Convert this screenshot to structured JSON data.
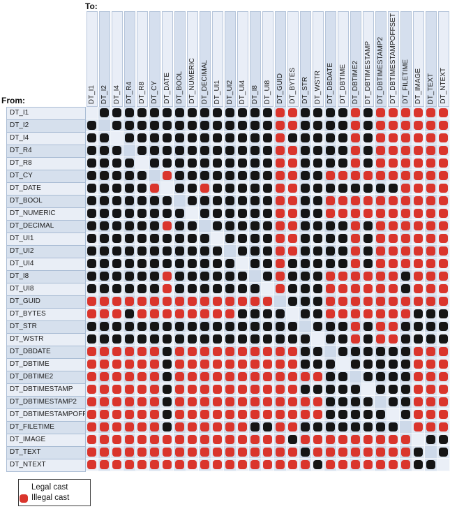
{
  "header": {
    "to_label": "To:",
    "from_label": "From:"
  },
  "legend": {
    "legal_label": "Legal cast",
    "illegal_label": "Illegal cast"
  },
  "colors": {
    "legal_dot": "#151515",
    "illegal_dot": "#da352c"
  },
  "chart_data": {
    "type": "heatmap",
    "x_axis_label": "To:",
    "y_axis_label": "From:",
    "legend_entries": [
      {
        "label": "Legal cast",
        "color": "#151515"
      },
      {
        "label": "Illegal cast",
        "color": "#da352c"
      }
    ],
    "cell_encoding": {
      "L": "legal cast (black dot)",
      "I": "illegal cast (red dot)",
      "S": "same type (no dot)"
    },
    "categories": [
      "DT_I1",
      "DT_I2",
      "DT_I4",
      "DT_R4",
      "DT_R8",
      "DT_CY",
      "DT_DATE",
      "DT_BOOL",
      "DT_NUMERIC",
      "DT_DECIMAL",
      "DT_UI1",
      "DT_UI2",
      "DT_UI4",
      "DT_I8",
      "DT_UI8",
      "DT_GUID",
      "DT_BYTES",
      "DT_STR",
      "DT_WSTR",
      "DT_DBDATE",
      "DT_DBTIME",
      "DT_DBTIME2",
      "DT_DBTIMESTAMP",
      "DT_DBTIMESTAMP2",
      "DT_DBTIMESTAMPOFFSET",
      "DT_FILETIME",
      "DT_IMAGE",
      "DT_TEXT",
      "DT_NTEXT"
    ],
    "rows": [
      "SLLLLLLLLLLLLLLIILLLLILIIIIII",
      "LSLLLLLLLLLLLLLIILLLLILIIIIII",
      "LLSLLLLLLLLLLLLILLLLLILIIIIII",
      "LLLSLLLLLLLLLLLIILLLLILIIIIII",
      "LLLLSLLLLLLLLLLIILLLLILIIIIII",
      "LLLLLSILLLLLLLLIILLIIIIIIIIII",
      "LLLLLISLLILLLLLIILLLLLLLLIIII",
      "LLLLLLLSLLLLLLLIILLIIIIIIIIII",
      "LLLLLLLLSLLLLLLIILLIIIIIIIIII",
      "LLLLLLILLSLLLLLIILLLLILIIIIII",
      "LLLLLLLLLLSLLLLIILLLLILIIIIII",
      "LLLLLLLLLLLSLLLIILLLLILIIIIII",
      "LLLLLLLLLLLLSLLILLLLLILIIIIII",
      "LLLLLLILLLLLLSLILLLIIIIIILIII",
      "LLLLLLILLLLLLLSILLLIIIIIILIII",
      "IIIIIIIIIIIIIIISLLLIIIIIIIIII",
      "IIILIIIIIIIILLLLSLLIIIIIIILLL",
      "LLLLLLLLLLLLLLLLLSLLLILIILLLL",
      "LLLLLLLLLLLLLLLLLLSLLILIILLLL",
      "IIIIIILIIIIIIIIIILLSLLLLLLIII",
      "IIIIIILIIIIIIIIIILLLSLLLLLIII",
      "IIIIIILIIIIIIIIIIIILLSLLLLIII",
      "IIIIIILIIIIIIIIIILLLLLSLLLIII",
      "IIIIIILIIIIIIIIIIIILLLLSLLIII",
      "IIIIIILIIIIIIIIIIIILLLLLSLIII",
      "IIIIIILIIIIIILLIILLLLLLLLSIII",
      "IIIIIIIIIIIIIIIILIIIIIIIIISLL",
      "IIIIIIIIIIIIIIIIILIIIIIIIILSL",
      "IIIIIIIIIIIIIIIIIILIIIIIIILLS"
    ]
  }
}
